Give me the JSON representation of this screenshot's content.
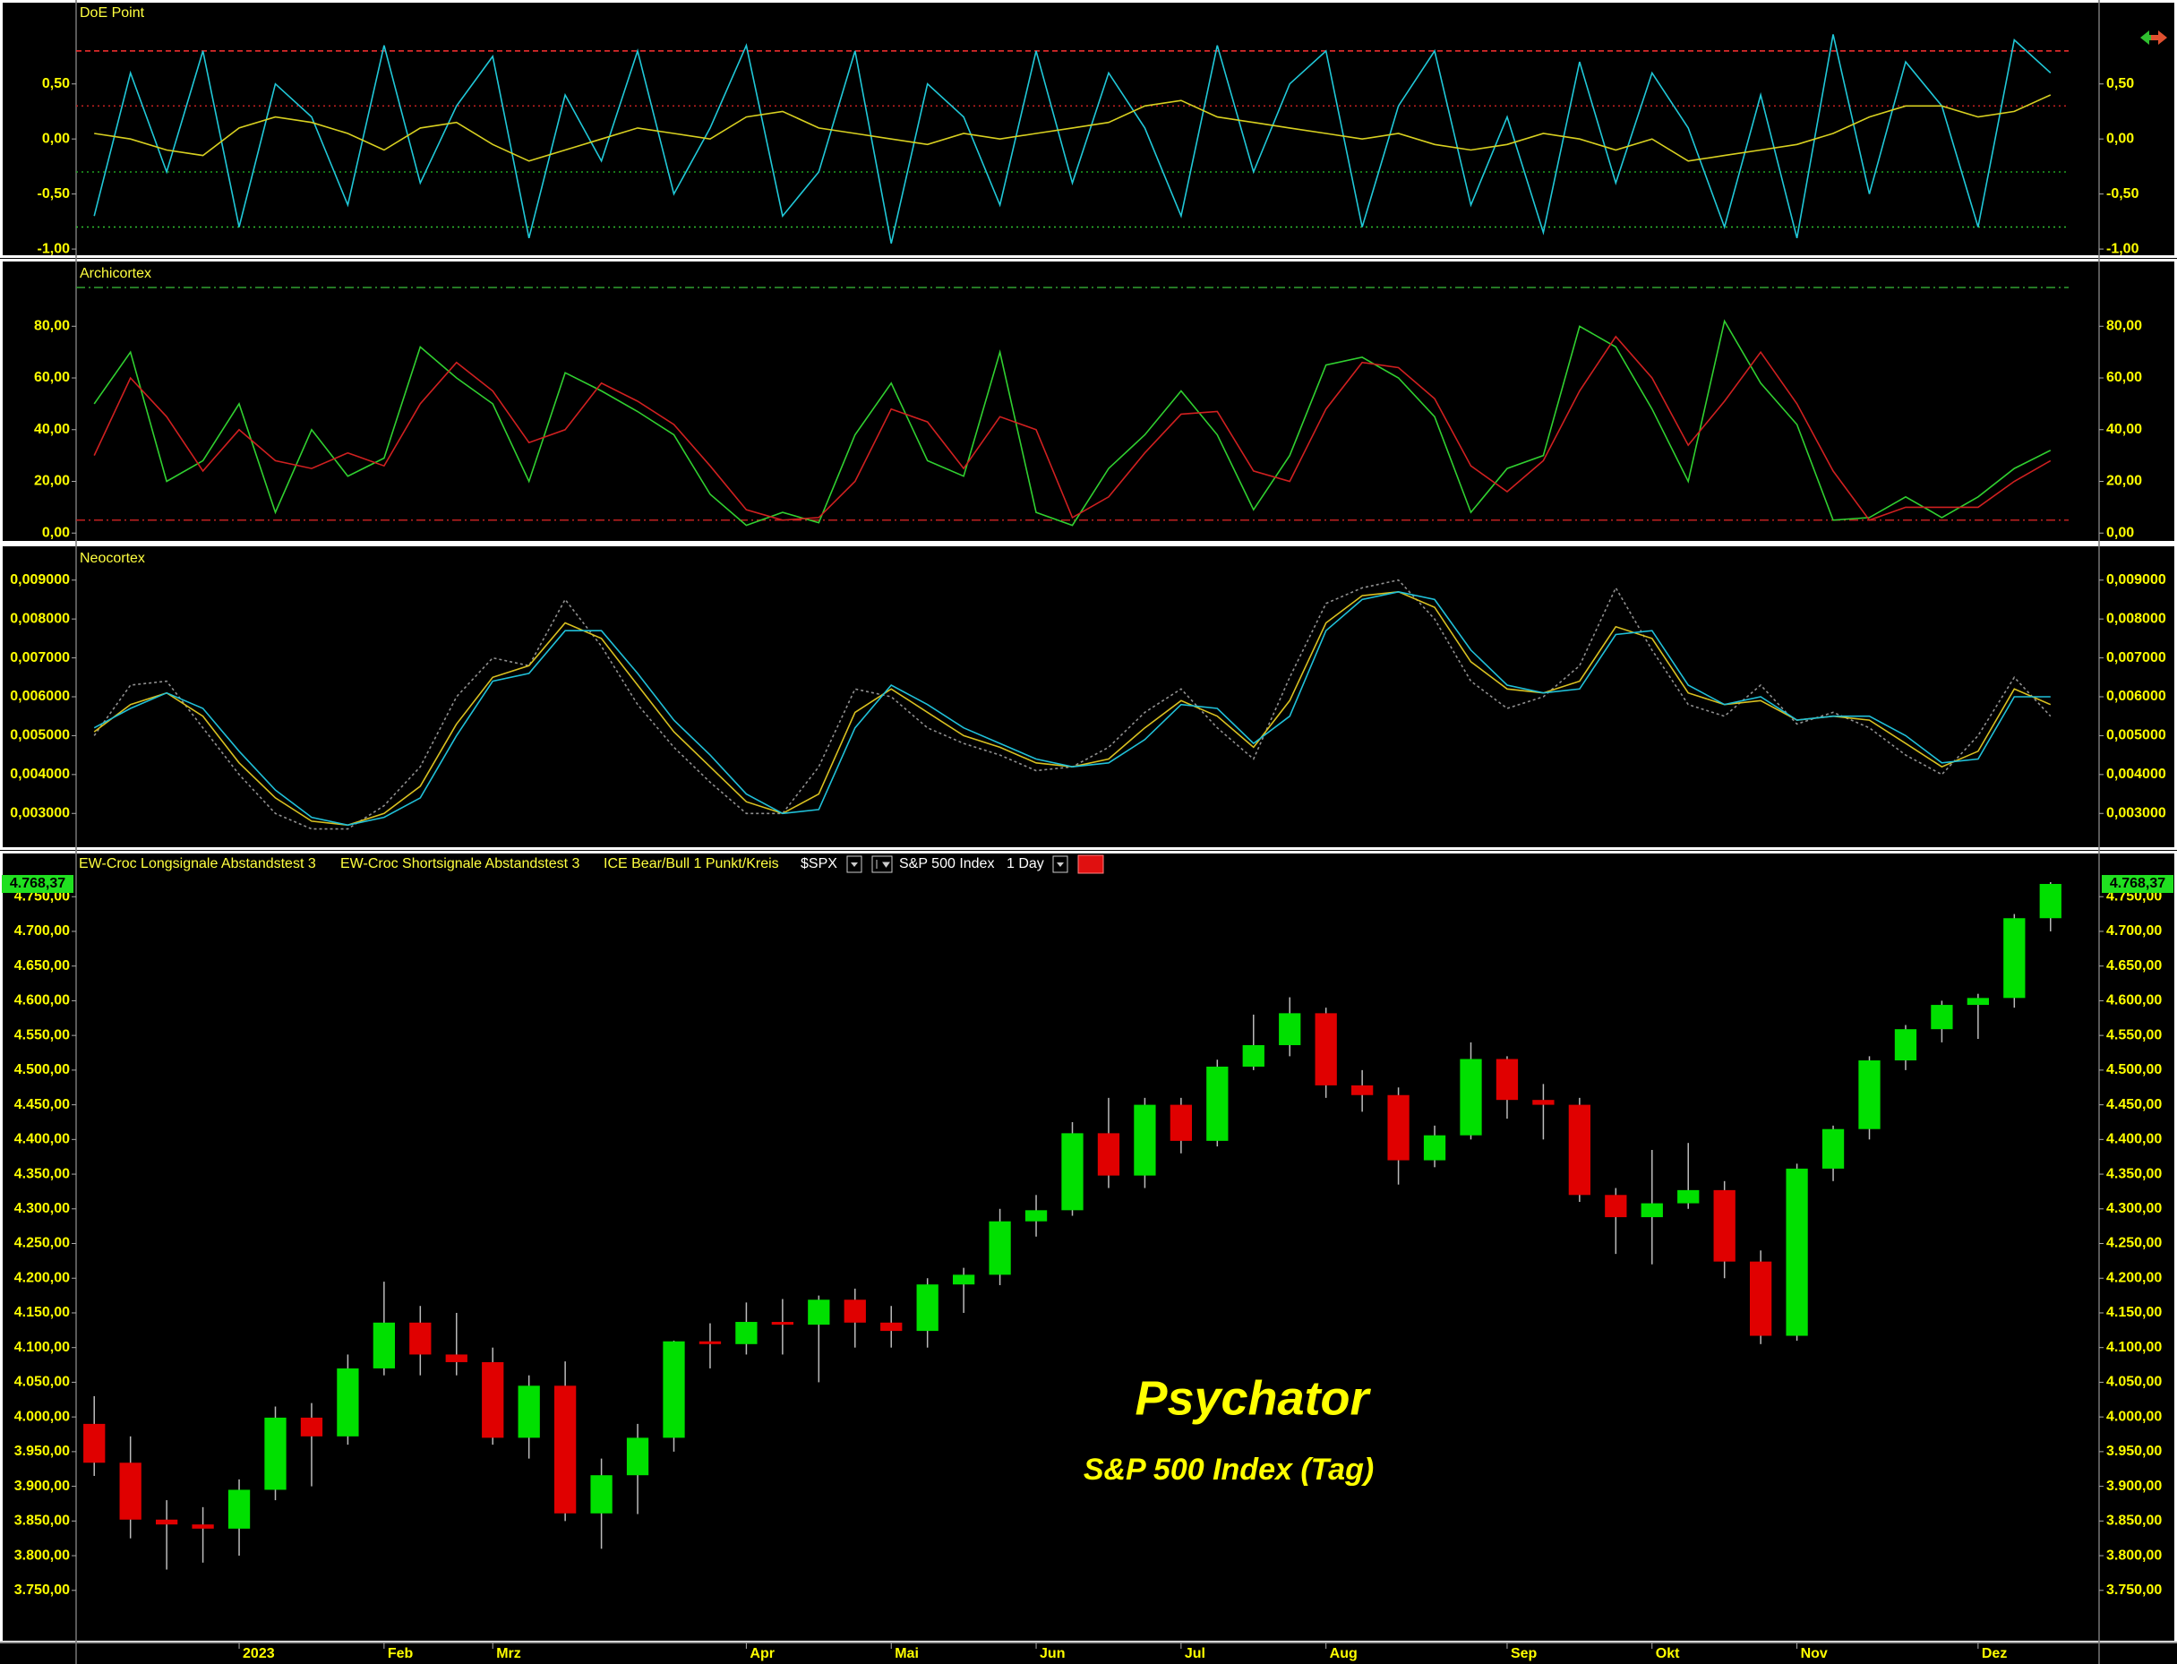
{
  "chart_data": [
    {
      "type": "line",
      "title": "DoE Point",
      "ylim": [
        -1.04,
        1.23
      ],
      "yticks": [
        {
          "value": -1,
          "label": "-1,00"
        },
        {
          "value": -0.5,
          "label": "-0,50"
        },
        {
          "value": 0,
          "label": "0,00"
        },
        {
          "value": 0.5,
          "label": "0,50"
        }
      ],
      "hlines": [
        {
          "value": 0.8,
          "color": "#ff3030",
          "dash": "6 4"
        },
        {
          "value": 0.3,
          "color": "#c02020",
          "dash": "2 4"
        },
        {
          "value": -0.3,
          "color": "#20a020",
          "dash": "2 4"
        },
        {
          "value": -0.8,
          "color": "#30c030",
          "dash": "2 4"
        }
      ],
      "series": [
        {
          "color": "#20c8d8",
          "values": [
            -0.7,
            0.6,
            -0.3,
            0.8,
            -0.8,
            0.5,
            0.2,
            -0.6,
            0.85,
            -0.4,
            0.3,
            0.75,
            -0.9,
            0.4,
            -0.2,
            0.8,
            -0.5,
            0.1,
            0.85,
            -0.7,
            -0.3,
            0.8,
            -0.95,
            0.5,
            0.2,
            -0.6,
            0.8,
            -0.4,
            0.6,
            0.1,
            -0.7,
            0.85,
            -0.3,
            0.5,
            0.8,
            -0.8,
            0.3,
            0.8,
            -0.6,
            0.2,
            -0.85,
            0.7,
            -0.4,
            0.6,
            0.1,
            -0.8,
            0.4,
            -0.9,
            0.95,
            -0.5,
            0.7,
            0.3,
            -0.8,
            0.9,
            0.6
          ]
        },
        {
          "color": "#d8d020",
          "values": [
            0.05,
            0.0,
            -0.1,
            -0.15,
            0.1,
            0.2,
            0.15,
            0.05,
            -0.1,
            0.1,
            0.15,
            -0.05,
            -0.2,
            -0.1,
            0.0,
            0.1,
            0.05,
            0.0,
            0.2,
            0.25,
            0.1,
            0.05,
            0.0,
            -0.05,
            0.05,
            0.0,
            0.05,
            0.1,
            0.15,
            0.3,
            0.35,
            0.2,
            0.15,
            0.1,
            0.05,
            0.0,
            0.05,
            -0.05,
            -0.1,
            -0.05,
            0.05,
            0.0,
            -0.1,
            0.0,
            -0.2,
            -0.15,
            -0.1,
            -0.05,
            0.05,
            0.2,
            0.3,
            0.3,
            0.2,
            0.25,
            0.4
          ]
        }
      ]
    },
    {
      "type": "line",
      "title": "Archicortex",
      "ylim": [
        -2,
        104
      ],
      "yticks": [
        {
          "value": 0,
          "label": "0,00"
        },
        {
          "value": 20,
          "label": "20,00"
        },
        {
          "value": 40,
          "label": "40,00"
        },
        {
          "value": 60,
          "label": "60,00"
        },
        {
          "value": 80,
          "label": "80,00"
        }
      ],
      "hlines": [
        {
          "value": 95,
          "color": "#30a030",
          "dash": "10 4 2 4"
        },
        {
          "value": 5,
          "color": "#c02020",
          "dash": "10 4 2 4"
        }
      ],
      "series": [
        {
          "color": "#30d030",
          "values": [
            50,
            70,
            20,
            28,
            50,
            8,
            40,
            22,
            29,
            72,
            60,
            50,
            20,
            62,
            55,
            47,
            38,
            15,
            3,
            8,
            4,
            38,
            58,
            28,
            22,
            70,
            8,
            3,
            25,
            38,
            55,
            38,
            9,
            30,
            65,
            68,
            60,
            45,
            8,
            25,
            30,
            80,
            72,
            48,
            20,
            82,
            58,
            42,
            5,
            6,
            14,
            6,
            14,
            25,
            32
          ]
        },
        {
          "color": "#d02020",
          "values": [
            30,
            60,
            45,
            24,
            40,
            28,
            25,
            31,
            26,
            50,
            66,
            55,
            35,
            40,
            58,
            51,
            42,
            26,
            9,
            5,
            6,
            20,
            48,
            43,
            25,
            45,
            40,
            6,
            14,
            31,
            46,
            47,
            24,
            20,
            48,
            66,
            64,
            52,
            26,
            16,
            28,
            55,
            76,
            60,
            34,
            51,
            70,
            50,
            24,
            5,
            10,
            10,
            10,
            20,
            28
          ]
        }
      ]
    },
    {
      "type": "line",
      "title": "Neocortex",
      "ylim": [
        0.0022,
        0.0098
      ],
      "yticks": [
        {
          "value": 0.003,
          "label": "0,003000"
        },
        {
          "value": 0.004,
          "label": "0,004000"
        },
        {
          "value": 0.005,
          "label": "0,005000"
        },
        {
          "value": 0.006,
          "label": "0,006000"
        },
        {
          "value": 0.007,
          "label": "0,007000"
        },
        {
          "value": 0.008,
          "label": "0,008000"
        },
        {
          "value": 0.009,
          "label": "0,009000"
        }
      ],
      "series": [
        {
          "color": "#909090",
          "dash": "3 3",
          "values": [
            0.005,
            0.0063,
            0.0064,
            0.0052,
            0.004,
            0.003,
            0.0026,
            0.0026,
            0.0032,
            0.0042,
            0.006,
            0.007,
            0.0068,
            0.0085,
            0.0073,
            0.0058,
            0.0047,
            0.0038,
            0.003,
            0.003,
            0.0042,
            0.0062,
            0.006,
            0.0052,
            0.0048,
            0.0045,
            0.0041,
            0.0042,
            0.0047,
            0.0056,
            0.0062,
            0.0052,
            0.0044,
            0.0065,
            0.0084,
            0.0088,
            0.009,
            0.008,
            0.0064,
            0.0057,
            0.006,
            0.0068,
            0.0088,
            0.0072,
            0.0058,
            0.0055,
            0.0063,
            0.0053,
            0.0056,
            0.0052,
            0.0045,
            0.004,
            0.005,
            0.0065,
            0.0055
          ]
        },
        {
          "color": "#d8c020",
          "values": [
            0.0051,
            0.0058,
            0.0061,
            0.0055,
            0.0043,
            0.0034,
            0.0028,
            0.0027,
            0.003,
            0.0037,
            0.0053,
            0.0065,
            0.0068,
            0.0079,
            0.0075,
            0.0063,
            0.0051,
            0.0042,
            0.0033,
            0.003,
            0.0035,
            0.0056,
            0.0062,
            0.0056,
            0.005,
            0.0047,
            0.0043,
            0.0042,
            0.0044,
            0.0052,
            0.0059,
            0.0055,
            0.0047,
            0.0059,
            0.0079,
            0.0086,
            0.0087,
            0.0083,
            0.0069,
            0.0062,
            0.0061,
            0.0064,
            0.0078,
            0.0075,
            0.0061,
            0.0058,
            0.0059,
            0.0054,
            0.0055,
            0.0054,
            0.0048,
            0.0042,
            0.0046,
            0.0062,
            0.0058
          ]
        },
        {
          "color": "#20c0d8",
          "values": [
            0.0052,
            0.0057,
            0.0061,
            0.0057,
            0.0046,
            0.0036,
            0.0029,
            0.0027,
            0.0029,
            0.0034,
            0.005,
            0.0064,
            0.0066,
            0.0077,
            0.0077,
            0.0066,
            0.0054,
            0.0045,
            0.0035,
            0.003,
            0.0031,
            0.0052,
            0.0063,
            0.0058,
            0.0052,
            0.0048,
            0.0044,
            0.0042,
            0.0043,
            0.0049,
            0.0058,
            0.0057,
            0.0048,
            0.0055,
            0.0077,
            0.0085,
            0.0087,
            0.0085,
            0.0072,
            0.0063,
            0.0061,
            0.0062,
            0.0076,
            0.0077,
            0.0063,
            0.0058,
            0.006,
            0.0054,
            0.0055,
            0.0055,
            0.005,
            0.0043,
            0.0044,
            0.006,
            0.006
          ]
        }
      ]
    },
    {
      "type": "candlestick",
      "indicators": [
        "EW-Croc Longsignale Abstandstest 3",
        "EW-Croc Shortsignale Abstandstest 3",
        "ICE Bear/Bull 1 Punkt/Kreis"
      ],
      "symbol": "$SPX",
      "name": "S&P 500 Index",
      "interval": "1 Day",
      "annotations": [
        "Psychator",
        "S&P 500 Index (Tag)"
      ],
      "last_price": {
        "value": 4768.37,
        "label": "4.768,37"
      },
      "up_color": "#00e000",
      "down_color": "#e00000",
      "ylim": [
        3680,
        4780
      ],
      "yticks": [
        {
          "value": 3750,
          "label": "3.750,00"
        },
        {
          "value": 3800,
          "label": "3.800,00"
        },
        {
          "value": 3850,
          "label": "3.850,00"
        },
        {
          "value": 3900,
          "label": "3.900,00"
        },
        {
          "value": 3950,
          "label": "3.950,00"
        },
        {
          "value": 4000,
          "label": "4.000,00"
        },
        {
          "value": 4050,
          "label": "4.050,00"
        },
        {
          "value": 4100,
          "label": "4.100,00"
        },
        {
          "value": 4150,
          "label": "4.150,00"
        },
        {
          "value": 4200,
          "label": "4.200,00"
        },
        {
          "value": 4250,
          "label": "4.250,00"
        },
        {
          "value": 4300,
          "label": "4.300,00"
        },
        {
          "value": 4350,
          "label": "4.350,00"
        },
        {
          "value": 4400,
          "label": "4.400,00"
        },
        {
          "value": 4450,
          "label": "4.450,00"
        },
        {
          "value": 4500,
          "label": "4.500,00"
        },
        {
          "value": 4550,
          "label": "4.550,00"
        },
        {
          "value": 4600,
          "label": "4.600,00"
        },
        {
          "value": 4650,
          "label": "4.650,00"
        },
        {
          "value": 4700,
          "label": "4.700,00"
        },
        {
          "value": 4750,
          "label": "4.750,00"
        }
      ],
      "categories": [
        null,
        null,
        null,
        null,
        "2023",
        null,
        null,
        null,
        "Feb",
        null,
        null,
        "Mrz",
        null,
        null,
        null,
        null,
        null,
        null,
        "Apr",
        null,
        null,
        null,
        "Mai",
        null,
        null,
        null,
        "Jun",
        null,
        null,
        null,
        "Jul",
        null,
        null,
        null,
        "Aug",
        null,
        null,
        null,
        null,
        "Sep",
        null,
        null,
        null,
        "Okt",
        null,
        null,
        null,
        "Nov",
        null,
        null,
        null,
        null,
        "Dez",
        null,
        null
      ],
      "open": [
        3990,
        3934,
        3852,
        3845,
        3839,
        3895,
        3999,
        3972,
        4070,
        4136,
        4090,
        4079,
        3970,
        4045,
        3861,
        3916,
        3970,
        4109,
        4105,
        4137,
        4133,
        4169,
        4136,
        4124,
        4191,
        4205,
        4282,
        4298,
        4409,
        4348,
        4450,
        4398,
        4505,
        4536,
        4582,
        4478,
        4464,
        4370,
        4406,
        4516,
        4457,
        4450,
        4320,
        4288,
        4308,
        4327,
        4224,
        4117,
        4358,
        4415,
        4514,
        4559,
        4594,
        4604,
        4719
      ],
      "high": [
        4030,
        3972,
        3880,
        3870,
        3910,
        4015,
        4020,
        4090,
        4195,
        4160,
        4150,
        4100,
        4060,
        4080,
        3940,
        3990,
        4110,
        4135,
        4165,
        4170,
        4175,
        4185,
        4160,
        4200,
        4215,
        4300,
        4320,
        4425,
        4460,
        4460,
        4460,
        4515,
        4580,
        4605,
        4590,
        4500,
        4475,
        4420,
        4540,
        4520,
        4480,
        4460,
        4330,
        4385,
        4395,
        4340,
        4240,
        4365,
        4420,
        4520,
        4565,
        4600,
        4610,
        4725,
        4771
      ],
      "low": [
        3915,
        3825,
        3780,
        3790,
        3800,
        3880,
        3900,
        3960,
        4060,
        4060,
        4060,
        3960,
        3940,
        3850,
        3810,
        3860,
        3950,
        4070,
        4090,
        4090,
        4050,
        4100,
        4100,
        4100,
        4150,
        4190,
        4260,
        4290,
        4330,
        4330,
        4380,
        4390,
        4500,
        4520,
        4460,
        4440,
        4335,
        4360,
        4400,
        4430,
        4400,
        4310,
        4235,
        4220,
        4300,
        4200,
        4105,
        4110,
        4340,
        4400,
        4500,
        4540,
        4545,
        4590,
        4700
      ],
      "close": [
        3934,
        3852,
        3845,
        3839,
        3895,
        3999,
        3972,
        4070,
        4136,
        4090,
        4079,
        3970,
        4045,
        3861,
        3916,
        3970,
        4109,
        4105,
        4137,
        4133,
        4169,
        4136,
        4124,
        4191,
        4205,
        4282,
        4298,
        4409,
        4348,
        4450,
        4398,
        4505,
        4536,
        4582,
        4478,
        4464,
        4370,
        4406,
        4516,
        4457,
        4450,
        4320,
        4288,
        4308,
        4327,
        4224,
        4117,
        4358,
        4415,
        4514,
        4559,
        4594,
        4604,
        4719,
        4768.37
      ]
    }
  ]
}
